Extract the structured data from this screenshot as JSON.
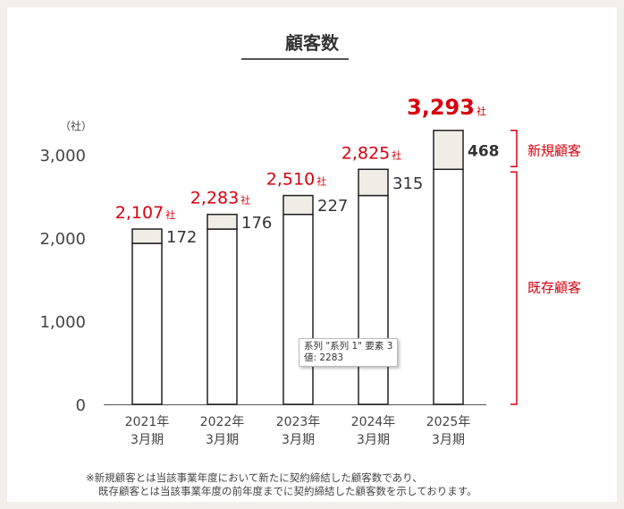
{
  "title": "顧客数",
  "footnote": [
    "※新規顧客とは当該事業年度において新たに契約締結した顧客数であり、",
    "既存顧客とは当該事業年度の前年度までに契約締結した顧客数を示しております。"
  ],
  "tooltip": {
    "line1": "系列 \"系列 1\" 要素 3",
    "line2": "値: 2283"
  },
  "chart_data": {
    "type": "bar",
    "stacked": true,
    "title": "顧客数",
    "yunit": "（社）",
    "ylim": [
      0,
      3000
    ],
    "yticks": [
      0,
      1000,
      2000,
      3000
    ],
    "ytick_labels": [
      "0",
      "1,000",
      "2,000",
      "3,000"
    ],
    "grid": false,
    "categories": [
      [
        "2021年",
        "3月期"
      ],
      [
        "2022年",
        "3月期"
      ],
      [
        "2023年",
        "3月期"
      ],
      [
        "2024年",
        "3月期"
      ],
      [
        "2025年",
        "3月期"
      ]
    ],
    "series": [
      {
        "name": "既存顧客",
        "values": [
          1935,
          2107,
          2283,
          2510,
          2825
        ]
      },
      {
        "name": "新規顧客",
        "values": [
          172,
          176,
          227,
          315,
          468
        ]
      }
    ],
    "new_labels": [
      "172",
      "176",
      "227",
      "315",
      "468"
    ],
    "totals": [
      2107,
      2283,
      2510,
      2825,
      3293
    ],
    "total_labels": [
      "2,107",
      "2,283",
      "2,510",
      "2,825",
      "3,293"
    ],
    "total_unit": "社",
    "bracket_labels": {
      "new": "新規顧客",
      "existing": "既存顧客"
    },
    "colors": {
      "existing_fill": "#ffffff",
      "new_fill": "#efede6",
      "bar_stroke": "#222222",
      "total_text": "#d7000f",
      "bracket": "#d7000f",
      "axis_text": "#444444"
    }
  }
}
